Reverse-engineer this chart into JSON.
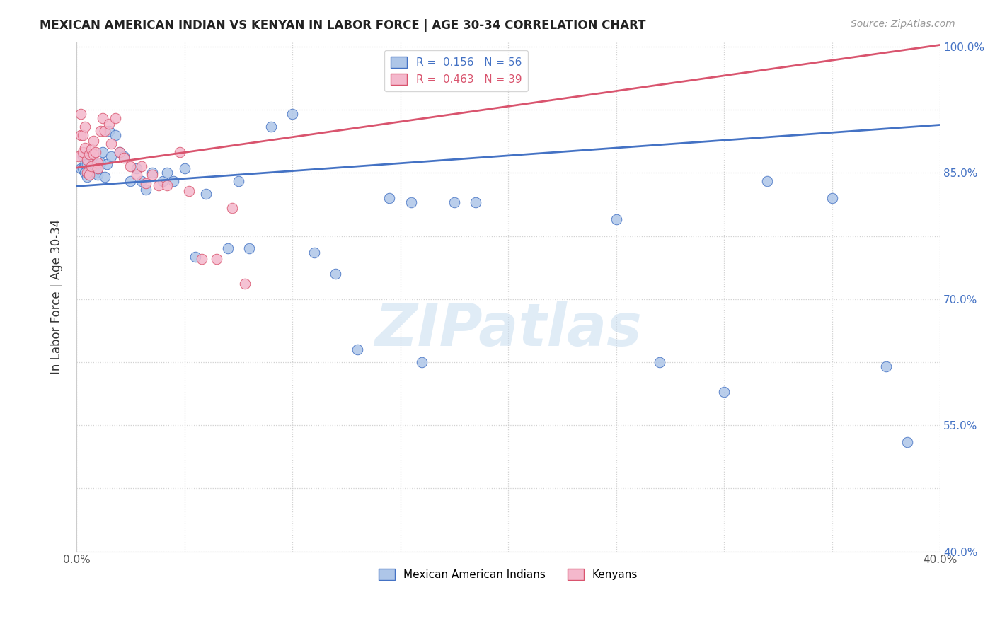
{
  "title": "MEXICAN AMERICAN INDIAN VS KENYAN IN LABOR FORCE | AGE 30-34 CORRELATION CHART",
  "source": "Source: ZipAtlas.com",
  "ylabel": "In Labor Force | Age 30-34",
  "xlim": [
    0.0,
    0.4
  ],
  "ylim": [
    0.4,
    1.005
  ],
  "xticks": [
    0.0,
    0.05,
    0.1,
    0.15,
    0.2,
    0.25,
    0.3,
    0.35,
    0.4
  ],
  "xtick_labels": [
    "0.0%",
    "",
    "",
    "",
    "",
    "",
    "",
    "",
    "40.0%"
  ],
  "yticks": [
    0.4,
    0.475,
    0.55,
    0.625,
    0.7,
    0.775,
    0.85,
    0.925,
    1.0
  ],
  "ytick_labels": [
    "40.0%",
    "",
    "55.0%",
    "",
    "70.0%",
    "",
    "85.0%",
    "",
    "100.0%"
  ],
  "blue_R": 0.156,
  "blue_N": 56,
  "pink_R": 0.463,
  "pink_N": 39,
  "blue_color": "#aec6e8",
  "pink_color": "#f4b8cc",
  "blue_line_color": "#4472c4",
  "pink_line_color": "#d9546e",
  "blue_scatter_x": [
    0.002,
    0.003,
    0.003,
    0.004,
    0.004,
    0.005,
    0.005,
    0.006,
    0.006,
    0.007,
    0.007,
    0.008,
    0.008,
    0.009,
    0.01,
    0.01,
    0.011,
    0.012,
    0.013,
    0.014,
    0.015,
    0.016,
    0.018,
    0.02,
    0.022,
    0.025,
    0.028,
    0.03,
    0.032,
    0.035,
    0.04,
    0.042,
    0.045,
    0.05,
    0.055,
    0.06,
    0.07,
    0.075,
    0.08,
    0.09,
    0.1,
    0.11,
    0.12,
    0.13,
    0.145,
    0.155,
    0.16,
    0.175,
    0.185,
    0.25,
    0.27,
    0.3,
    0.32,
    0.35,
    0.375,
    0.385
  ],
  "blue_scatter_y": [
    0.855,
    0.87,
    0.855,
    0.86,
    0.85,
    0.86,
    0.845,
    0.855,
    0.848,
    0.852,
    0.855,
    0.858,
    0.862,
    0.85,
    0.848,
    0.855,
    0.862,
    0.875,
    0.845,
    0.86,
    0.9,
    0.87,
    0.895,
    0.875,
    0.87,
    0.84,
    0.855,
    0.84,
    0.83,
    0.85,
    0.84,
    0.85,
    0.84,
    0.855,
    0.75,
    0.825,
    0.76,
    0.84,
    0.76,
    0.905,
    0.92,
    0.755,
    0.73,
    0.64,
    0.82,
    0.815,
    0.625,
    0.815,
    0.815,
    0.795,
    0.625,
    0.59,
    0.84,
    0.82,
    0.62,
    0.53
  ],
  "pink_scatter_x": [
    0.001,
    0.002,
    0.002,
    0.003,
    0.003,
    0.004,
    0.004,
    0.005,
    0.005,
    0.006,
    0.006,
    0.007,
    0.007,
    0.008,
    0.008,
    0.009,
    0.01,
    0.01,
    0.011,
    0.012,
    0.013,
    0.015,
    0.016,
    0.018,
    0.02,
    0.022,
    0.025,
    0.028,
    0.03,
    0.032,
    0.035,
    0.038,
    0.042,
    0.048,
    0.052,
    0.058,
    0.065,
    0.072,
    0.078
  ],
  "pink_scatter_y": [
    0.87,
    0.895,
    0.92,
    0.875,
    0.895,
    0.88,
    0.905,
    0.85,
    0.865,
    0.848,
    0.872,
    0.858,
    0.878,
    0.888,
    0.872,
    0.875,
    0.862,
    0.855,
    0.9,
    0.915,
    0.9,
    0.908,
    0.885,
    0.915,
    0.875,
    0.868,
    0.858,
    0.848,
    0.858,
    0.838,
    0.848,
    0.835,
    0.835,
    0.875,
    0.828,
    0.748,
    0.748,
    0.808,
    0.718
  ],
  "blue_trendline_x": [
    0.0,
    0.4
  ],
  "blue_trendline_y": [
    0.834,
    0.907
  ],
  "pink_trendline_x": [
    0.0,
    0.4
  ],
  "pink_trendline_y": [
    0.856,
    1.002
  ],
  "watermark_text": "ZIPatlas",
  "legend_blue_label": "Mexican American Indians",
  "legend_pink_label": "Kenyans",
  "background_color": "#ffffff",
  "grid_color": "#cccccc"
}
